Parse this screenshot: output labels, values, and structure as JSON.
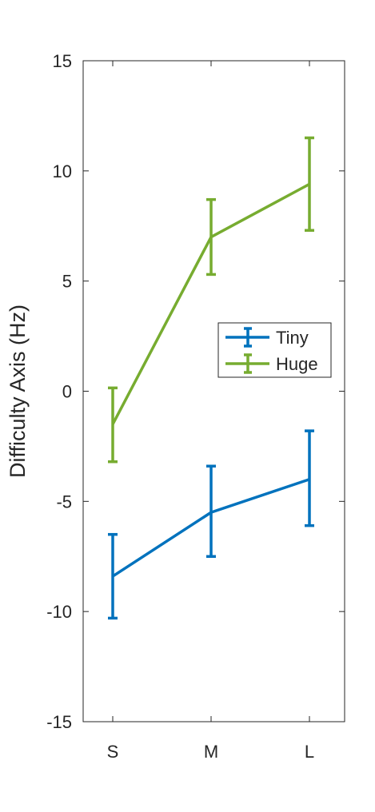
{
  "chart_data": {
    "type": "line",
    "categories": [
      "S",
      "M",
      "L"
    ],
    "ylabel": "Difficulty Axis (Hz)",
    "ylim": [
      -15,
      15
    ],
    "yticks": [
      15,
      10,
      5,
      0,
      -5,
      -10,
      -15
    ],
    "ytick_labels": [
      "15",
      "10",
      "5",
      "0",
      "-5",
      "-10",
      "-15"
    ],
    "grid": false,
    "legend_position": "right",
    "series": [
      {
        "name": "Tiny",
        "color": "#0072BD",
        "values": [
          -8.4,
          -5.5,
          -4.0
        ],
        "err_low": [
          -10.3,
          -7.5,
          -6.1
        ],
        "err_high": [
          -6.5,
          -3.4,
          -1.8
        ]
      },
      {
        "name": "Huge",
        "color": "#77AC30",
        "values": [
          -1.5,
          7.0,
          9.4
        ],
        "err_low": [
          -3.2,
          5.3,
          7.3
        ],
        "err_high": [
          0.15,
          8.7,
          11.5
        ]
      }
    ]
  }
}
